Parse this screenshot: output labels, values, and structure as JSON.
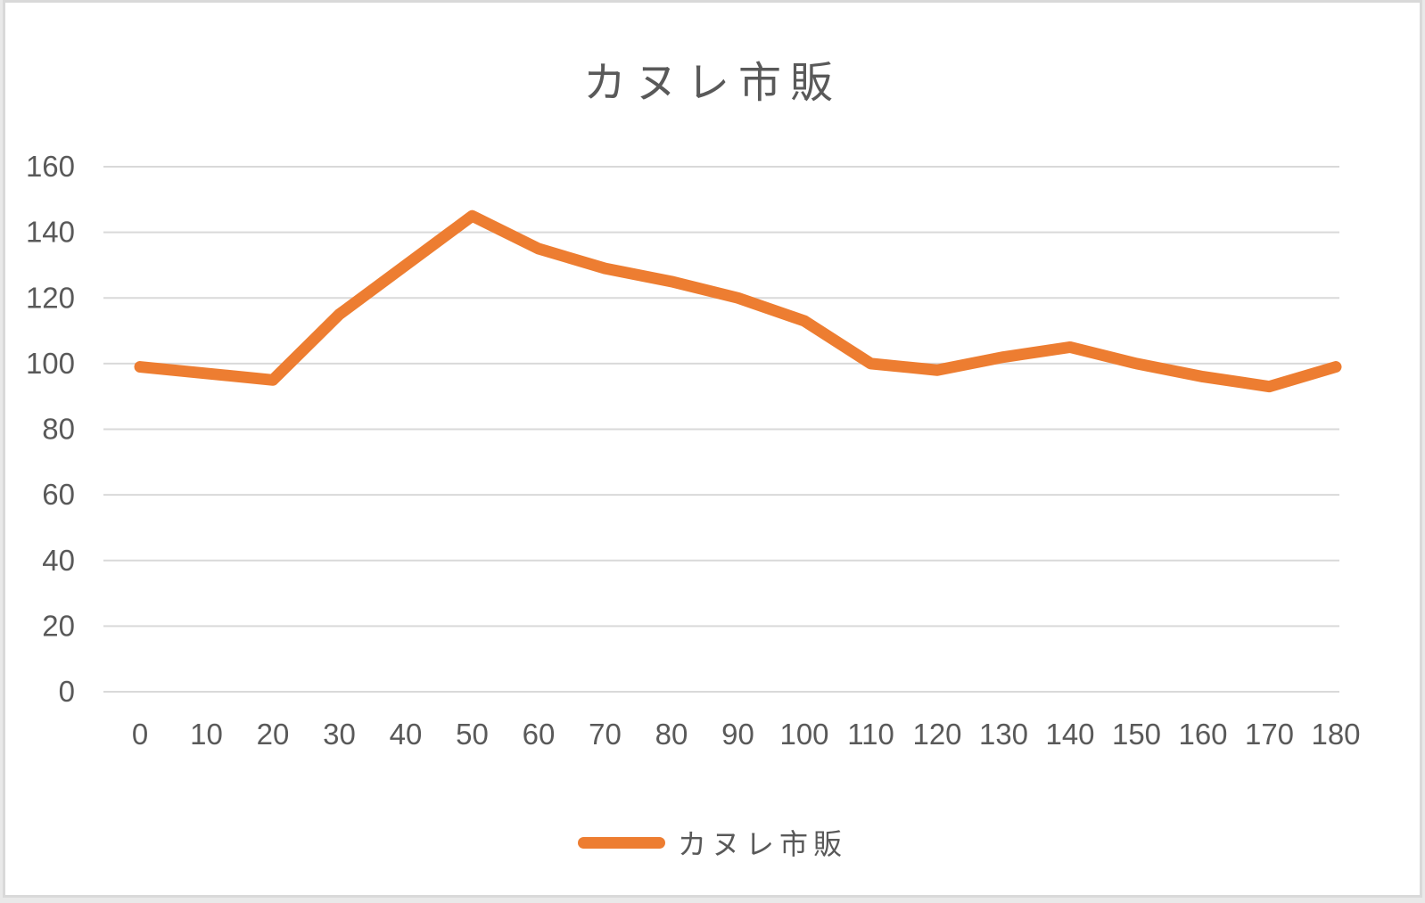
{
  "page": {
    "background_color": "#ffffff",
    "border_color": "#d9d9d9"
  },
  "chart_data": {
    "type": "line",
    "title": "カヌレ市販",
    "categories": [
      "0",
      "10",
      "20",
      "30",
      "40",
      "50",
      "60",
      "70",
      "80",
      "90",
      "100",
      "110",
      "120",
      "130",
      "140",
      "150",
      "160",
      "170",
      "180"
    ],
    "series": [
      {
        "name": "カヌレ市販",
        "color": "#ED7D31",
        "values": [
          99,
          97,
          95,
          115,
          130,
          145,
          135,
          129,
          125,
          120,
          113,
          100,
          98,
          102,
          105,
          100,
          96,
          93,
          99
        ]
      }
    ],
    "xlabel": "",
    "ylabel": "",
    "ylim": [
      0,
      160
    ],
    "yticks": [
      0,
      20,
      40,
      60,
      80,
      100,
      120,
      140,
      160
    ],
    "grid": true,
    "grid_color": "#d9d9d9",
    "axis_color": "#d9d9d9",
    "label_color": "#595959",
    "title_color": "#595959",
    "legend_position": "bottom"
  },
  "legend": {
    "label": "カヌレ市販"
  }
}
